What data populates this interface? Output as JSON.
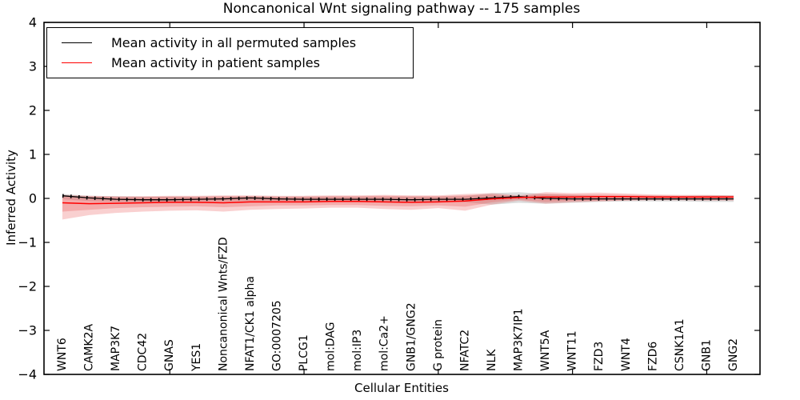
{
  "chart_data": {
    "type": "line",
    "title": "Noncanonical Wnt signaling pathway -- 175 samples",
    "xlabel": "Cellular Entities",
    "ylabel": "Inferred Activity",
    "ylim": [
      -4,
      4
    ],
    "yticks": [
      4,
      3,
      2,
      1,
      0,
      -1,
      -2,
      -3,
      -4
    ],
    "grid": false,
    "legend_position": "upper left",
    "x_major_ticks_at": [
      "GNAS",
      "PLCG1",
      "G protein",
      "WNT11",
      "GNB1"
    ],
    "entities": [
      "WNT6",
      "CAMK2A",
      "MAP3K7",
      "CDC42",
      "GNAS",
      "YES1",
      "Noncanonical Wnts/FZD",
      "NFAT1/CK1 alpha",
      "GO:0007205",
      "PLCG1",
      "mol:DAG",
      "mol:IP3",
      "mol:Ca2+",
      "GNB1/GNG2",
      "G protein",
      "NFATC2",
      "NLK",
      "MAP3K7IP1",
      "WNT5A",
      "WNT11",
      "FZD3",
      "WNT4",
      "FZD6",
      "CSNK1A1",
      "GNB1",
      "GNG2"
    ],
    "series": [
      {
        "name": "Mean activity in all permuted samples",
        "color": "#000000",
        "style": "solid-with-tick-markers",
        "values": [
          0.06,
          0.01,
          -0.02,
          -0.03,
          -0.03,
          -0.02,
          -0.01,
          0.01,
          -0.01,
          -0.02,
          -0.02,
          -0.02,
          -0.02,
          -0.03,
          -0.02,
          -0.02,
          0.01,
          0.04,
          0.0,
          -0.01,
          -0.01,
          -0.01,
          -0.01,
          -0.01,
          -0.01,
          -0.01
        ]
      },
      {
        "name": "Mean activity in patient samples",
        "color": "#ff0000",
        "style": "solid",
        "values": [
          -0.1,
          -0.12,
          -0.11,
          -0.1,
          -0.09,
          -0.09,
          -0.1,
          -0.08,
          -0.08,
          -0.08,
          -0.07,
          -0.07,
          -0.08,
          -0.09,
          -0.08,
          -0.06,
          -0.01,
          0.02,
          0.03,
          0.03,
          0.04,
          0.04,
          0.03,
          0.03,
          0.03,
          0.03
        ]
      }
    ],
    "bands": [
      {
        "name": "permuted-samples-spread-band",
        "color": "#999999",
        "opacity": 0.35,
        "upper": [
          0.1,
          0.06,
          0.05,
          0.04,
          0.04,
          0.04,
          0.04,
          0.05,
          0.04,
          0.04,
          0.04,
          0.04,
          0.04,
          0.04,
          0.04,
          0.05,
          0.12,
          0.14,
          0.1,
          0.08,
          0.06,
          0.06,
          0.06,
          0.06,
          0.07,
          0.07
        ],
        "lower": [
          -0.02,
          -0.06,
          -0.08,
          -0.08,
          -0.08,
          -0.07,
          -0.07,
          -0.06,
          -0.06,
          -0.06,
          -0.06,
          -0.06,
          -0.06,
          -0.07,
          -0.07,
          -0.09,
          -0.14,
          -0.1,
          -0.12,
          -0.1,
          -0.08,
          -0.07,
          -0.07,
          -0.07,
          -0.08,
          -0.08
        ]
      },
      {
        "name": "patient-samples-outer-band",
        "color": "#e85555",
        "opacity": 0.28,
        "upper": [
          0.08,
          0.06,
          0.05,
          0.05,
          0.06,
          0.06,
          0.07,
          0.07,
          0.06,
          0.06,
          0.07,
          0.07,
          0.08,
          0.07,
          0.07,
          0.1,
          0.12,
          0.07,
          0.14,
          0.12,
          0.13,
          0.11,
          0.09,
          0.08,
          0.08,
          0.07
        ],
        "lower": [
          -0.48,
          -0.38,
          -0.33,
          -0.3,
          -0.28,
          -0.27,
          -0.3,
          -0.26,
          -0.24,
          -0.23,
          -0.21,
          -0.21,
          -0.24,
          -0.26,
          -0.22,
          -0.28,
          -0.14,
          -0.05,
          -0.12,
          -0.09,
          -0.07,
          -0.05,
          -0.04,
          -0.04,
          -0.05,
          -0.05
        ]
      },
      {
        "name": "patient-samples-inner-band",
        "color": "#e85555",
        "opacity": 0.3,
        "upper": [
          0.06,
          0.04,
          0.03,
          0.03,
          0.04,
          0.04,
          0.05,
          0.05,
          0.04,
          0.04,
          0.05,
          0.05,
          0.06,
          0.05,
          0.05,
          0.07,
          0.09,
          0.05,
          0.1,
          0.09,
          0.09,
          0.08,
          0.07,
          0.06,
          0.06,
          0.06
        ],
        "lower": [
          -0.3,
          -0.26,
          -0.22,
          -0.2,
          -0.19,
          -0.18,
          -0.2,
          -0.18,
          -0.16,
          -0.16,
          -0.15,
          -0.15,
          -0.17,
          -0.18,
          -0.16,
          -0.19,
          -0.09,
          -0.03,
          -0.08,
          -0.06,
          -0.05,
          -0.04,
          -0.03,
          -0.03,
          -0.03,
          -0.03
        ]
      }
    ],
    "legend": [
      {
        "label": "Mean activity in all permuted samples",
        "color": "#000000"
      },
      {
        "label": "Mean activity in patient samples",
        "color": "#ff0000"
      }
    ]
  }
}
